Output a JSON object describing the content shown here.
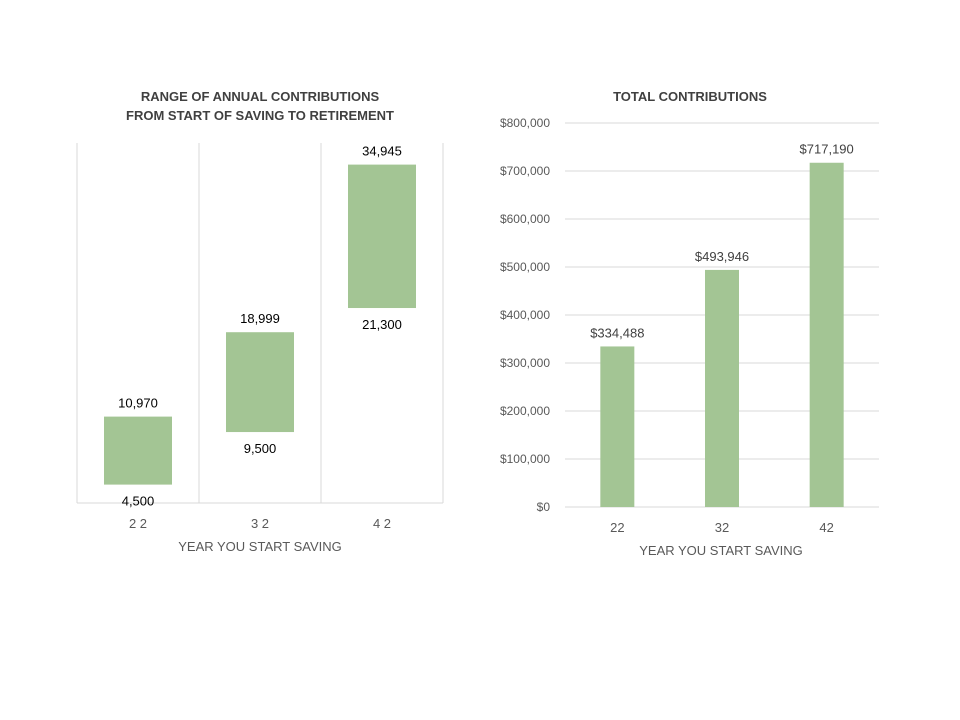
{
  "chart_data": [
    {
      "type": "bar",
      "subtype": "floating-range",
      "title": "RANGE OF ANNUAL CONTRIBUTIONS",
      "subtitle": "FROM START OF SAVING TO RETIREMENT",
      "xlabel": "YEAR YOU START SAVING",
      "ylabel": "",
      "categories": [
        "2 2",
        "3 2",
        "4 2"
      ],
      "series": [
        {
          "low": [
            4500,
            9500,
            21300
          ],
          "high": [
            10970,
            18999,
            34945
          ]
        }
      ],
      "low_labels": [
        "4,500",
        "9,500",
        "21,300"
      ],
      "high_labels": [
        "10,970",
        "18,999",
        "34,945"
      ],
      "ylim": [
        2750,
        37000
      ],
      "grid": false,
      "color": "#a3c594"
    },
    {
      "type": "bar",
      "title": "TOTAL CONTRIBUTIONS",
      "xlabel": "YEAR YOU START SAVING",
      "ylabel": "",
      "categories": [
        "22",
        "32",
        "42"
      ],
      "values": [
        334488,
        493946,
        717190
      ],
      "value_labels": [
        "$334,488",
        "$493,946",
        "$717,190"
      ],
      "yticks": [
        "$0",
        "$100,000",
        "$200,000",
        "$300,000",
        "$400,000",
        "$500,000",
        "$600,000",
        "$700,000",
        "$800,000"
      ],
      "ylim": [
        0,
        800000
      ],
      "grid": true,
      "color": "#a3c594"
    }
  ]
}
